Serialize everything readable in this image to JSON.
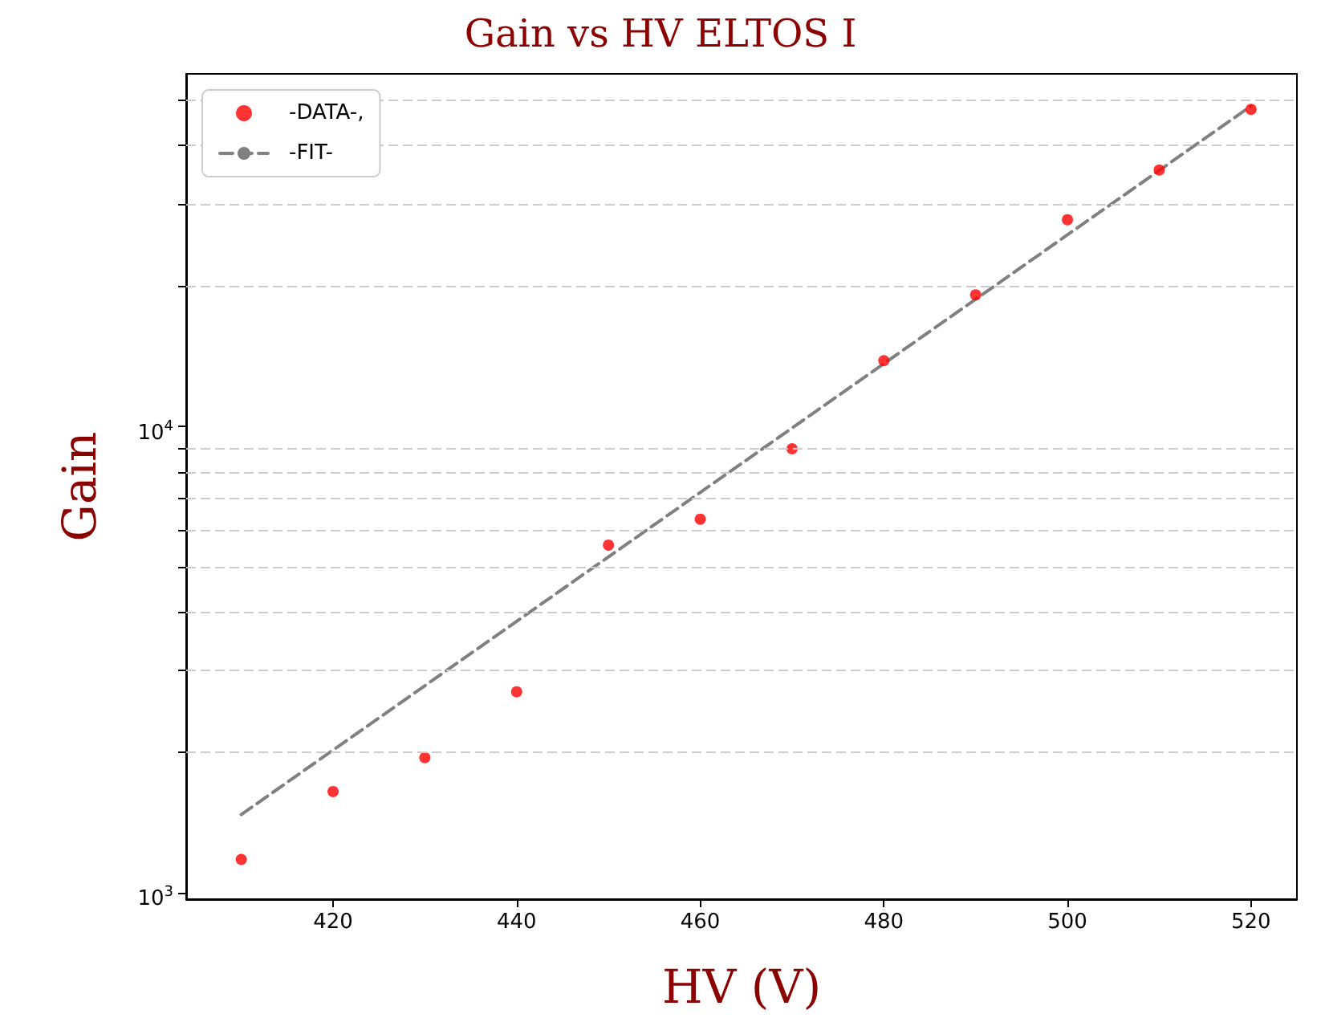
{
  "chart_data": {
    "type": "scatter",
    "title": "Gain vs HV ELTOS I",
    "xlabel": "HV (V)",
    "ylabel": "Gain",
    "log": "y",
    "grid": "y",
    "legend": "top left",
    "xlim": [
      404,
      525
    ],
    "xticks": [
      420,
      440,
      460,
      480,
      500,
      520
    ],
    "ylim": [
      970,
      57000
    ],
    "yticks": [
      {
        "value": 1000,
        "label": "10$^{3}$"
      },
      {
        "value": 2000,
        "label": null
      },
      {
        "value": 3000,
        "label": null
      },
      {
        "value": 4000,
        "label": null
      },
      {
        "value": 5000,
        "label": null
      },
      {
        "value": 6000,
        "label": null
      },
      {
        "value": 7000,
        "label": null
      },
      {
        "value": 8000,
        "label": null
      },
      {
        "value": 9000,
        "label": null
      },
      {
        "value": 10000,
        "label": "10$^{4}$"
      },
      {
        "value": 20000,
        "label": null
      },
      {
        "value": 30000,
        "label": null
      },
      {
        "value": 40000,
        "label": null
      },
      {
        "value": 50000,
        "label": null
      }
    ],
    "series": [
      {
        "name": "-DATA-,",
        "marker": "circle",
        "color": "#ff0000",
        "x": [
          410,
          420,
          430,
          440,
          450,
          460,
          470,
          480,
          490,
          500,
          510,
          520
        ],
        "values": [
          1180,
          1650,
          1950,
          2700,
          5570,
          6330,
          8960,
          13840,
          19150,
          27750,
          35460,
          47830
        ]
      },
      {
        "name": "-FIT-",
        "type": "line",
        "marker": "none",
        "line_style": "dashed",
        "color": "#808080",
        "x": [
          410,
          520
        ],
        "values": [
          1473,
          48640
        ]
      }
    ]
  }
}
